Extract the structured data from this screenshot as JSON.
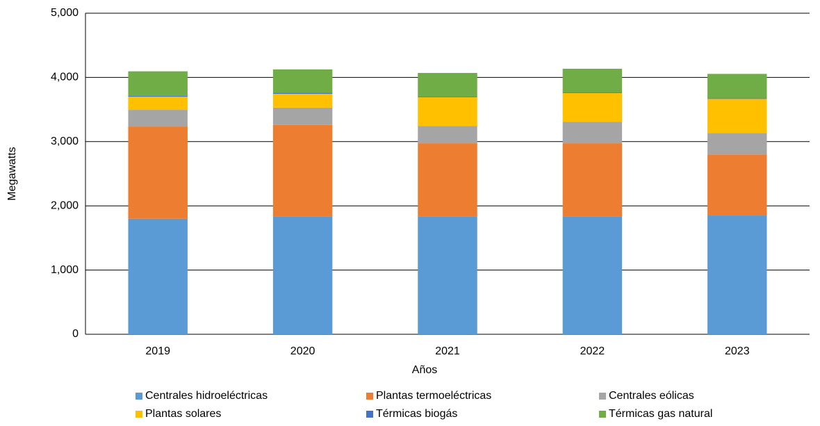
{
  "chart_data": {
    "type": "stacked_bar",
    "categories": [
      "2019",
      "2020",
      "2021",
      "2022",
      "2023"
    ],
    "series": [
      {
        "name": "Centrales hidroeléctricas",
        "color": "#5b9bd5",
        "values": [
          1800,
          1830,
          1830,
          1830,
          1850
        ]
      },
      {
        "name": "Plantas termoeléctricas",
        "color": "#ed7d31",
        "values": [
          1435,
          1430,
          1145,
          1145,
          950
        ]
      },
      {
        "name": "Centrales eólicas",
        "color": "#a5a5a5",
        "values": [
          260,
          270,
          270,
          335,
          335
        ]
      },
      {
        "name": "Plantas solares",
        "color": "#ffc000",
        "values": [
          205,
          215,
          445,
          445,
          530
        ]
      },
      {
        "name": "Térmicas biogás",
        "color": "#4472c4",
        "values": [
          15,
          15,
          10,
          10,
          10
        ]
      },
      {
        "name": "Térmicas gas natural",
        "color": "#70ad47",
        "values": [
          380,
          365,
          370,
          370,
          380
        ]
      }
    ],
    "ylabel": "Megawatts",
    "xlabel": "Años",
    "ylim": [
      0,
      5000
    ],
    "yticks": [
      0,
      {
        "value": 1000,
        "label": "1,000"
      },
      {
        "value": 2000,
        "label": "2,000"
      },
      {
        "value": 3000,
        "label": "3,000"
      },
      {
        "value": 4000,
        "label": "4,000"
      },
      {
        "value": 5000,
        "label": "5,000"
      }
    ],
    "grid": true,
    "legend": "bottom"
  }
}
